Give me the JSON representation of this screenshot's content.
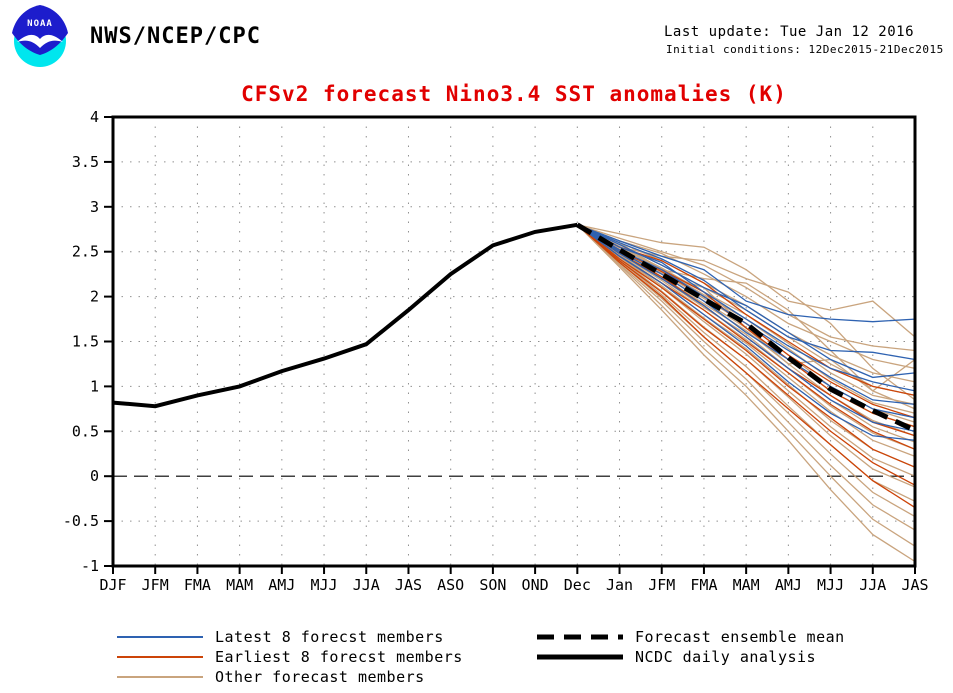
{
  "header": {
    "org": "NWS/NCEP/CPC",
    "last_update": "Last update: Tue Jan 12 2016",
    "initial_conditions": "Initial conditions: 12Dec2015-21Dec2015",
    "logo_label": "NOAA"
  },
  "chart_data": {
    "type": "line",
    "title": "CFSv2 forecast Nino3.4 SST anomalies (K)",
    "title_color": "#e10000",
    "xlabel": "",
    "ylabel": "",
    "categories": [
      "DJF",
      "JFM",
      "FMA",
      "MAM",
      "AMJ",
      "MJJ",
      "JJA",
      "JAS",
      "ASO",
      "SON",
      "OND",
      "Dec",
      "Jan",
      "JFM",
      "FMA",
      "MAM",
      "AMJ",
      "MJJ",
      "JJA",
      "JAS"
    ],
    "ylim": [
      -1,
      4
    ],
    "ytick_step": 0.5,
    "ytick_labels": [
      "4",
      "3.5",
      "3",
      "2.5",
      "2",
      "1.5",
      "1",
      "0.5",
      "0",
      "-0.5",
      "-1"
    ],
    "grid": "dotted",
    "zero_line": "dashed",
    "legend_position": "bottom",
    "series": [
      {
        "name": "NCDC daily analysis",
        "type": "observed",
        "color": "#000000",
        "dashed": false,
        "x_start_index": 0,
        "values": [
          0.82,
          0.78,
          0.9,
          1.0,
          1.17,
          1.31,
          1.47,
          1.85,
          2.25,
          2.57,
          2.72,
          2.8
        ]
      },
      {
        "name": "Forecast ensemble mean",
        "type": "mean",
        "color": "#000000",
        "dashed": true,
        "x_start_index": 11,
        "values": [
          2.8,
          2.52,
          2.25,
          1.97,
          1.7,
          1.32,
          0.97,
          0.73,
          0.51
        ]
      }
    ],
    "members": {
      "x_start_index": 11,
      "groups": [
        {
          "name": "Latest 8 forecst members",
          "color": "#2e62b1",
          "series": [
            [
              2.8,
              2.62,
              2.45,
              2.3,
              1.95,
              1.8,
              1.75,
              1.72,
              1.75
            ],
            [
              2.8,
              2.6,
              2.42,
              2.18,
              1.85,
              1.55,
              1.4,
              1.38,
              1.3
            ],
            [
              2.8,
              2.58,
              2.35,
              2.1,
              1.9,
              1.6,
              1.3,
              1.1,
              1.15
            ],
            [
              2.8,
              2.55,
              2.38,
              2.05,
              1.75,
              1.45,
              1.2,
              1.05,
              0.95
            ],
            [
              2.8,
              2.52,
              2.3,
              2.0,
              1.7,
              1.4,
              1.1,
              0.85,
              0.8
            ],
            [
              2.8,
              2.5,
              2.25,
              1.95,
              1.6,
              1.3,
              1.0,
              0.75,
              0.65
            ],
            [
              2.8,
              2.48,
              2.2,
              1.9,
              1.55,
              1.2,
              0.85,
              0.6,
              0.5
            ],
            [
              2.8,
              2.45,
              2.15,
              1.8,
              1.45,
              1.05,
              0.7,
              0.45,
              0.4
            ]
          ]
        },
        {
          "name": "Earliest 8 forecst members",
          "color": "#cc4408",
          "series": [
            [
              2.8,
              2.55,
              2.4,
              2.15,
              1.8,
              1.5,
              1.2,
              1.0,
              0.9
            ],
            [
              2.8,
              2.52,
              2.28,
              2.0,
              1.7,
              1.35,
              1.05,
              0.8,
              0.65
            ],
            [
              2.8,
              2.5,
              2.3,
              2.05,
              1.65,
              1.3,
              0.95,
              0.7,
              0.55
            ],
            [
              2.8,
              2.48,
              2.22,
              1.9,
              1.55,
              1.2,
              0.9,
              0.6,
              0.45
            ],
            [
              2.8,
              2.45,
              2.15,
              1.85,
              1.5,
              1.15,
              0.8,
              0.5,
              0.3
            ],
            [
              2.8,
              2.42,
              2.1,
              1.75,
              1.4,
              1.0,
              0.65,
              0.3,
              0.1
            ],
            [
              2.8,
              2.4,
              2.05,
              1.65,
              1.3,
              0.9,
              0.5,
              0.15,
              -0.1
            ],
            [
              2.8,
              2.38,
              2.0,
              1.55,
              1.15,
              0.75,
              0.35,
              -0.05,
              -0.35
            ]
          ]
        },
        {
          "name": "Other forecast members",
          "color": "#c9a47e",
          "series": [
            [
              2.8,
              2.7,
              2.6,
              2.55,
              2.3,
              1.95,
              1.85,
              1.95,
              1.55
            ],
            [
              2.8,
              2.65,
              2.5,
              2.35,
              2.1,
              1.8,
              1.55,
              1.45,
              1.4
            ],
            [
              2.8,
              2.62,
              2.48,
              2.25,
              2.0,
              1.7,
              1.5,
              1.3,
              1.2
            ],
            [
              2.8,
              2.6,
              2.4,
              2.15,
              1.9,
              1.6,
              1.35,
              1.15,
              1.05
            ],
            [
              2.8,
              2.58,
              2.35,
              2.1,
              1.85,
              1.55,
              1.25,
              1.0,
              0.9
            ],
            [
              2.8,
              2.56,
              2.32,
              2.05,
              1.8,
              1.48,
              1.15,
              0.9,
              0.8
            ],
            [
              2.8,
              2.55,
              2.3,
              2.02,
              1.75,
              1.42,
              1.08,
              0.82,
              0.7
            ],
            [
              2.8,
              2.53,
              2.27,
              1.98,
              1.7,
              1.35,
              1.0,
              0.75,
              0.6
            ],
            [
              2.8,
              2.52,
              2.25,
              1.95,
              1.65,
              1.3,
              0.95,
              0.7,
              0.55
            ],
            [
              2.8,
              2.5,
              2.22,
              1.92,
              1.62,
              1.25,
              0.9,
              0.62,
              0.45
            ],
            [
              2.8,
              2.5,
              2.2,
              1.88,
              1.58,
              1.2,
              0.85,
              0.55,
              0.38
            ],
            [
              2.8,
              2.48,
              2.18,
              1.85,
              1.52,
              1.15,
              0.78,
              0.48,
              0.3
            ],
            [
              2.8,
              2.47,
              2.15,
              1.8,
              1.48,
              1.1,
              0.72,
              0.4,
              0.22
            ],
            [
              2.8,
              2.45,
              2.12,
              1.76,
              1.42,
              1.02,
              0.62,
              0.3,
              0.1
            ],
            [
              2.8,
              2.44,
              2.1,
              1.72,
              1.36,
              0.95,
              0.55,
              0.2,
              0.0
            ],
            [
              2.8,
              2.42,
              2.06,
              1.66,
              1.3,
              0.88,
              0.45,
              0.08,
              -0.12
            ],
            [
              2.8,
              2.4,
              2.02,
              1.6,
              1.22,
              0.78,
              0.35,
              -0.05,
              -0.28
            ],
            [
              2.8,
              2.38,
              1.98,
              1.55,
              1.15,
              0.7,
              0.25,
              -0.18,
              -0.45
            ],
            [
              2.8,
              2.36,
              1.95,
              1.5,
              1.08,
              0.6,
              0.12,
              -0.32,
              -0.6
            ],
            [
              2.8,
              2.35,
              1.9,
              1.42,
              1.0,
              0.5,
              0.0,
              -0.48,
              -0.78
            ],
            [
              2.8,
              2.33,
              1.85,
              1.35,
              0.9,
              0.4,
              -0.15,
              -0.65,
              -0.95
            ],
            [
              2.8,
              2.55,
              2.45,
              2.4,
              2.2,
              2.05,
              1.7,
              1.2,
              0.85
            ],
            [
              2.8,
              2.6,
              2.3,
              2.2,
              2.15,
              1.85,
              1.4,
              0.95,
              1.3
            ],
            [
              2.8,
              2.45,
              2.25,
              2.1,
              1.65,
              1.25,
              1.3,
              0.95,
              0.75
            ]
          ]
        }
      ]
    }
  },
  "legend": {
    "left": [
      {
        "label": "Latest 8 forecst members"
      },
      {
        "label": "Earliest 8 forecst members"
      },
      {
        "label": "Other forecast members"
      }
    ],
    "right": [
      {
        "label": "Forecast ensemble mean"
      },
      {
        "label": "NCDC daily analysis"
      }
    ]
  }
}
